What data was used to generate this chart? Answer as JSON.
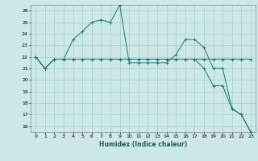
{
  "xlabel": "Humidex (Indice chaleur)",
  "bg_color": "#cce8e8",
  "grid_color": "#aacccc",
  "line_color": "#1a7a6e",
  "xlim": [
    -0.5,
    23.5
  ],
  "ylim": [
    15.5,
    26.5
  ],
  "xticks": [
    0,
    1,
    2,
    3,
    4,
    5,
    6,
    7,
    8,
    9,
    10,
    11,
    12,
    13,
    14,
    15,
    16,
    17,
    18,
    19,
    20,
    21,
    22,
    23
  ],
  "yticks": [
    16,
    17,
    18,
    19,
    20,
    21,
    22,
    23,
    24,
    25,
    26
  ],
  "series": [
    [
      22.0,
      21.0,
      21.8,
      21.8,
      23.5,
      24.2,
      25.0,
      25.2,
      25.0,
      26.5,
      21.5,
      21.5,
      21.5,
      21.5,
      21.5,
      22.2,
      23.5,
      23.5,
      22.8,
      21.0,
      21.0,
      17.5,
      17.0,
      15.5
    ],
    [
      22.0,
      21.0,
      21.8,
      21.8,
      21.8,
      21.8,
      21.8,
      21.8,
      21.8,
      21.8,
      21.8,
      21.8,
      21.8,
      21.8,
      21.8,
      21.8,
      21.8,
      21.8,
      21.8,
      21.8,
      21.8,
      21.8,
      21.8,
      21.8
    ],
    [
      22.0,
      21.0,
      21.8,
      21.8,
      21.8,
      21.8,
      21.8,
      21.8,
      21.8,
      21.8,
      21.8,
      21.8,
      21.8,
      21.8,
      21.8,
      21.8,
      21.8,
      21.8,
      21.0,
      19.5,
      19.5,
      17.5,
      17.0,
      15.5
    ]
  ]
}
